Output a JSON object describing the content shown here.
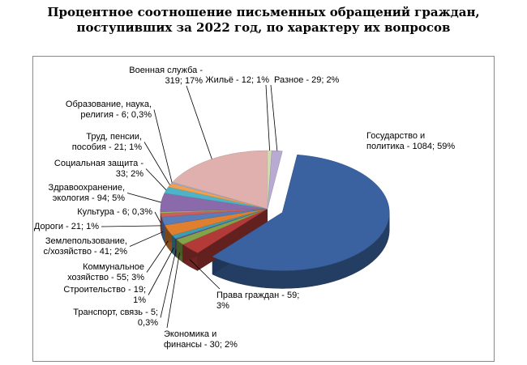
{
  "chart_data": {
    "type": "pie",
    "title": [
      "Процентное соотношение письменных обращений граждан,",
      "поступивших за 2022 год, по характеру их вопросов"
    ],
    "slices": [
      {
        "name": "Государство и политика",
        "value": 1084,
        "percent": "59%",
        "color": "#3a62a0",
        "label": [
          "Государство и",
          "политика - 1084; 59%"
        ]
      },
      {
        "name": "Права граждан",
        "value": 59,
        "percent": "3%",
        "color": "#b23a38",
        "label": [
          "Права граждан - 59;",
          "3%"
        ]
      },
      {
        "name": "Экономика и финансы",
        "value": 30,
        "percent": "2%",
        "color": "#84a248",
        "label": [
          "Экономика и",
          "финансы - 30; 2%"
        ]
      },
      {
        "name": "Транспорт, связь",
        "value": 5,
        "percent": "0,3%",
        "color": "#6d4c8a",
        "label": [
          "Транспорт, связь - 5;",
          "0,3%"
        ]
      },
      {
        "name": "Строительство",
        "value": 19,
        "percent": "1%",
        "color": "#3d9cb3",
        "label": [
          "Строительство - 19;",
          "1%"
        ]
      },
      {
        "name": "Коммунальное хозяйство",
        "value": 55,
        "percent": "3%",
        "color": "#e07f2e",
        "label": [
          "Коммунальное",
          "хозяйство - 55; 3%"
        ]
      },
      {
        "name": "Землепользование, с/хозяйство",
        "value": 41,
        "percent": "2%",
        "color": "#5a7cb8",
        "label": [
          "Землепользование,",
          "с/хозяйство - 41; 2%"
        ]
      },
      {
        "name": "Дороги",
        "value": 21,
        "percent": "1%",
        "color": "#c9605c",
        "label": [
          "Дороги - 21; 1%"
        ]
      },
      {
        "name": "Культура",
        "value": 6,
        "percent": "0,3%",
        "color": "#a3bf6a",
        "label": [
          "Культура - 6; 0,3%"
        ]
      },
      {
        "name": "Здравоохранение, экология",
        "value": 94,
        "percent": "5%",
        "color": "#8a6aaa",
        "label": [
          "Здравоохранение,",
          "экология - 94; 5%"
        ]
      },
      {
        "name": "Социальная защита",
        "value": 33,
        "percent": "2%",
        "color": "#4db3c8",
        "label": [
          "Социальная защита -",
          "33; 2%"
        ]
      },
      {
        "name": "Труд, пенсии, пособия",
        "value": 21,
        "percent": "1%",
        "color": "#f0a050",
        "label": [
          "Труд, пенсии,",
          "пособия - 21; 1%"
        ]
      },
      {
        "name": "Образование, наука, религия",
        "value": 6,
        "percent": "0,3%",
        "color": "#9db4d8",
        "label": [
          "Образование, наука,",
          "религия - 6; 0,3%"
        ]
      },
      {
        "name": "Военная служба",
        "value": 319,
        "percent": "17%",
        "color": "#e0b0ae",
        "label": [
          "Военная служба -",
          "319; 17%"
        ]
      },
      {
        "name": "Жильё",
        "value": 12,
        "percent": "1%",
        "color": "#d2dcb4",
        "label": [
          "Жильё - 12; 1%"
        ]
      },
      {
        "name": "Разное",
        "value": 29,
        "percent": "2%",
        "color": "#b8aad0",
        "label": [
          "Разное - 29; 2%"
        ]
      }
    ]
  }
}
